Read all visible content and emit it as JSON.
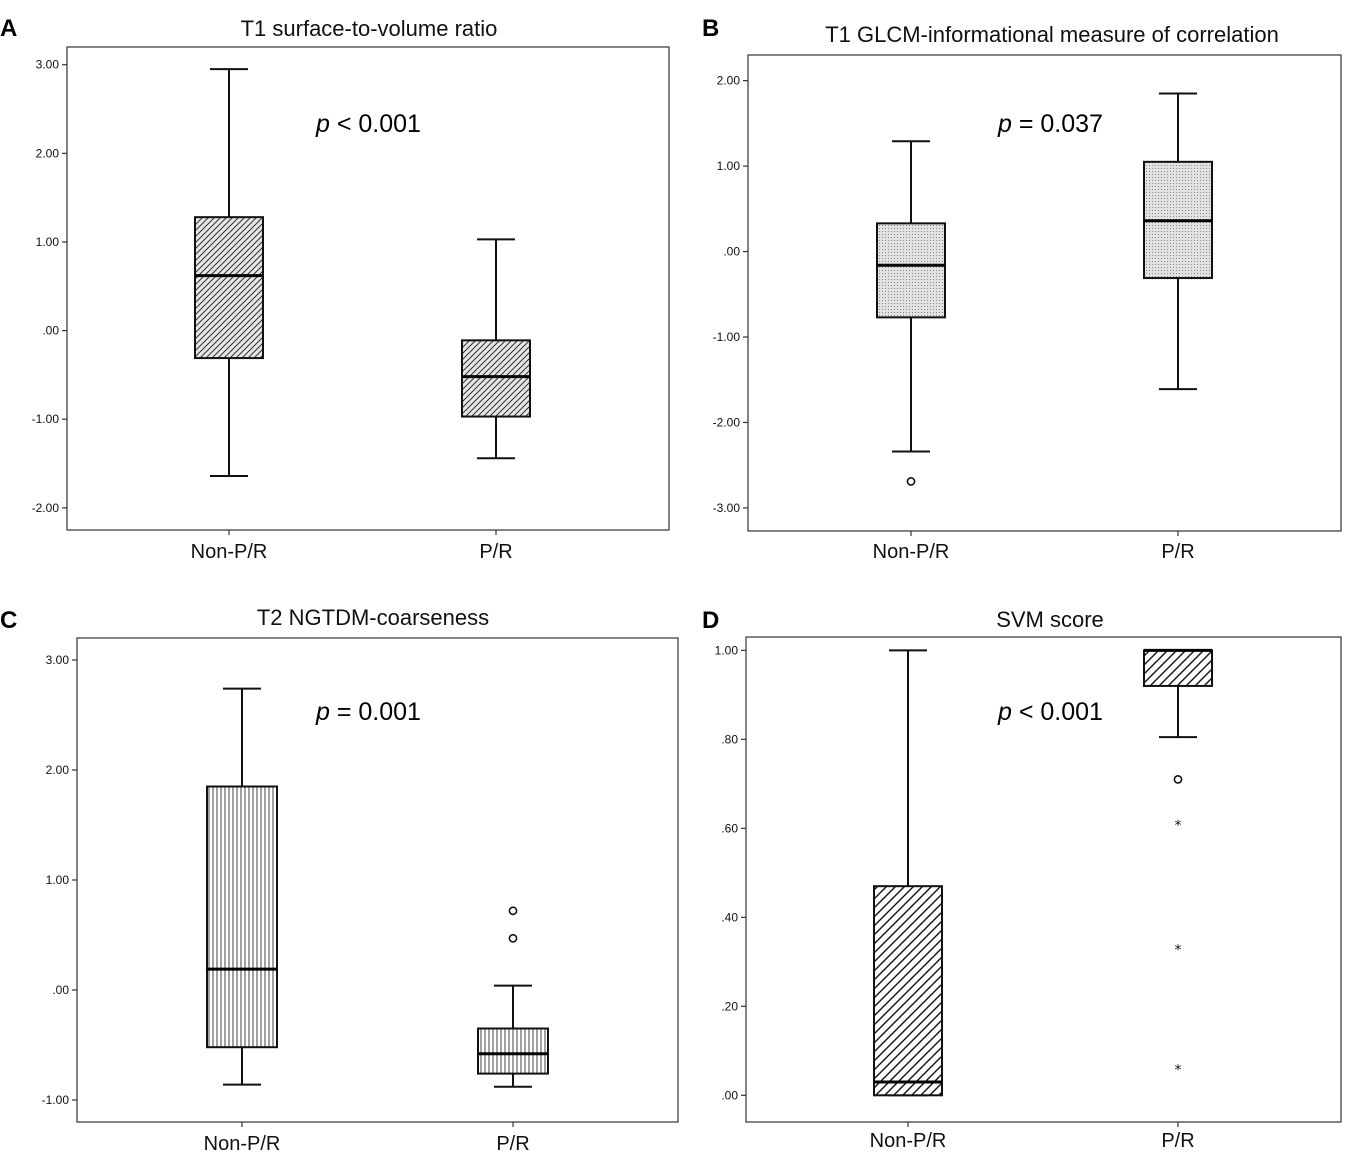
{
  "chart_data": [
    {
      "type": "boxplot",
      "panel_label": "A",
      "title": "T1 surface-to-volume ratio",
      "annotation": {
        "p_symbol": "p",
        "p_rest": " < 0.001"
      },
      "categories": [
        "Non-P/R",
        "P/R"
      ],
      "yticks": [
        3.0,
        2.0,
        1.0,
        0.0,
        -1.0,
        -2.0
      ],
      "ytick_labels": [
        "3.00",
        "2.00",
        "1.00",
        ".00",
        "-1.00",
        "-2.00"
      ],
      "ylim": [
        -2.25,
        3.2
      ],
      "pattern": "diag-right",
      "boxes": [
        {
          "min": -1.64,
          "q1": -0.31,
          "median": 0.62,
          "q3": 1.28,
          "max": 2.95,
          "outliers": [],
          "extremes": []
        },
        {
          "min": -1.44,
          "q1": -0.97,
          "median": -0.52,
          "q3": -0.11,
          "max": 1.03,
          "outliers": [],
          "extremes": []
        }
      ]
    },
    {
      "type": "boxplot",
      "panel_label": "B",
      "title": "T1 GLCM-informational measure of correlation",
      "annotation": {
        "p_symbol": "p",
        "p_rest": " = 0.037"
      },
      "categories": [
        "Non-P/R",
        "P/R"
      ],
      "yticks": [
        2.0,
        1.0,
        0.0,
        -1.0,
        -2.0,
        -3.0
      ],
      "ytick_labels": [
        "2.00",
        "1.00",
        ".00",
        "-1.00",
        "-2.00",
        "-3.00"
      ],
      "ylim": [
        -3.27,
        2.3
      ],
      "pattern": "dots",
      "boxes": [
        {
          "min": -2.34,
          "q1": -0.77,
          "median": -0.16,
          "q3": 0.33,
          "max": 1.29,
          "outliers": [
            -2.69
          ],
          "extremes": []
        },
        {
          "min": -1.61,
          "q1": -0.31,
          "median": 0.36,
          "q3": 1.05,
          "max": 1.85,
          "outliers": [],
          "extremes": []
        }
      ]
    },
    {
      "type": "boxplot",
      "panel_label": "C",
      "title": "T2 NGTDM-coarseness",
      "annotation": {
        "p_symbol": "p",
        "p_rest": " = 0.001"
      },
      "categories": [
        "Non-P/R",
        "P/R"
      ],
      "yticks": [
        3.0,
        2.0,
        1.0,
        0.0,
        -1.0
      ],
      "ytick_labels": [
        "3.00",
        "2.00",
        "1.00",
        ".00",
        "-1.00"
      ],
      "ylim": [
        -1.2,
        3.2
      ],
      "pattern": "vertical",
      "boxes": [
        {
          "min": -0.86,
          "q1": -0.52,
          "median": 0.19,
          "q3": 1.85,
          "max": 2.74,
          "outliers": [],
          "extremes": []
        },
        {
          "min": -0.88,
          "q1": -0.76,
          "median": -0.58,
          "q3": -0.35,
          "max": 0.04,
          "outliers": [
            0.72,
            0.47
          ],
          "extremes": []
        }
      ]
    },
    {
      "type": "boxplot",
      "panel_label": "D",
      "title": "SVM score",
      "annotation": {
        "p_symbol": "p",
        "p_rest": " < 0.001"
      },
      "categories": [
        "Non-P/R",
        "P/R"
      ],
      "yticks": [
        1.0,
        0.8,
        0.6,
        0.4,
        0.2,
        0.0
      ],
      "ytick_labels": [
        "1.00",
        ".80",
        ".60",
        ".40",
        ".20",
        ".00"
      ],
      "ylim": [
        -0.06,
        1.03
      ],
      "pattern": "diag-right-wide",
      "boxes": [
        {
          "min": 0.0,
          "q1": 0.0,
          "median": 0.03,
          "q3": 0.47,
          "max": 1.0,
          "outliers": [],
          "extremes": []
        },
        {
          "min": 0.805,
          "q1": 0.92,
          "median": 1.0,
          "q3": 1.0,
          "max": 1.0,
          "outliers": [
            0.71
          ],
          "extremes": [
            0.61,
            0.33,
            0.06
          ]
        }
      ]
    }
  ]
}
